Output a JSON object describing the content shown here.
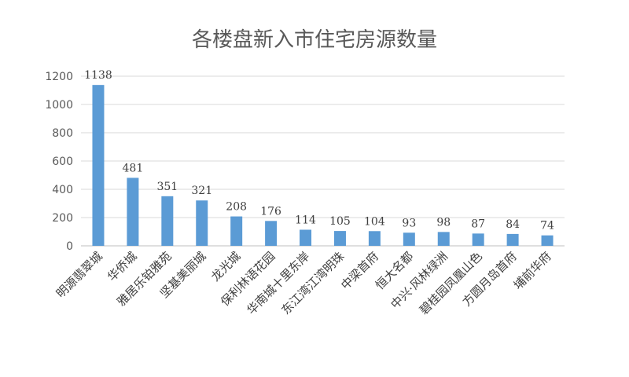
{
  "chart_data": {
    "type": "bar",
    "title": "各楼盘新入市住宅房源数量",
    "xlabel": "",
    "ylabel": "",
    "categories": [
      "明源翡翠城",
      "华侨城",
      "雅居乐铂雅苑",
      "坚基美丽城",
      "龙光城",
      "保利林语花园",
      "华南城十里东岸",
      "东江湾江湾明珠",
      "中梁首府",
      "恒大名都",
      "中兴·风林绿洲",
      "碧桂园凤凰山色",
      "方圆月岛首府",
      "埔前华府"
    ],
    "values": [
      1138,
      481,
      351,
      321,
      208,
      176,
      114,
      105,
      104,
      93,
      98,
      87,
      84,
      74
    ],
    "ylim": [
      0,
      1200
    ],
    "yticks": [
      0,
      200,
      400,
      600,
      800,
      1000,
      1200
    ],
    "grid": true,
    "legend": "none",
    "bar_color": "#5b9bd5"
  }
}
